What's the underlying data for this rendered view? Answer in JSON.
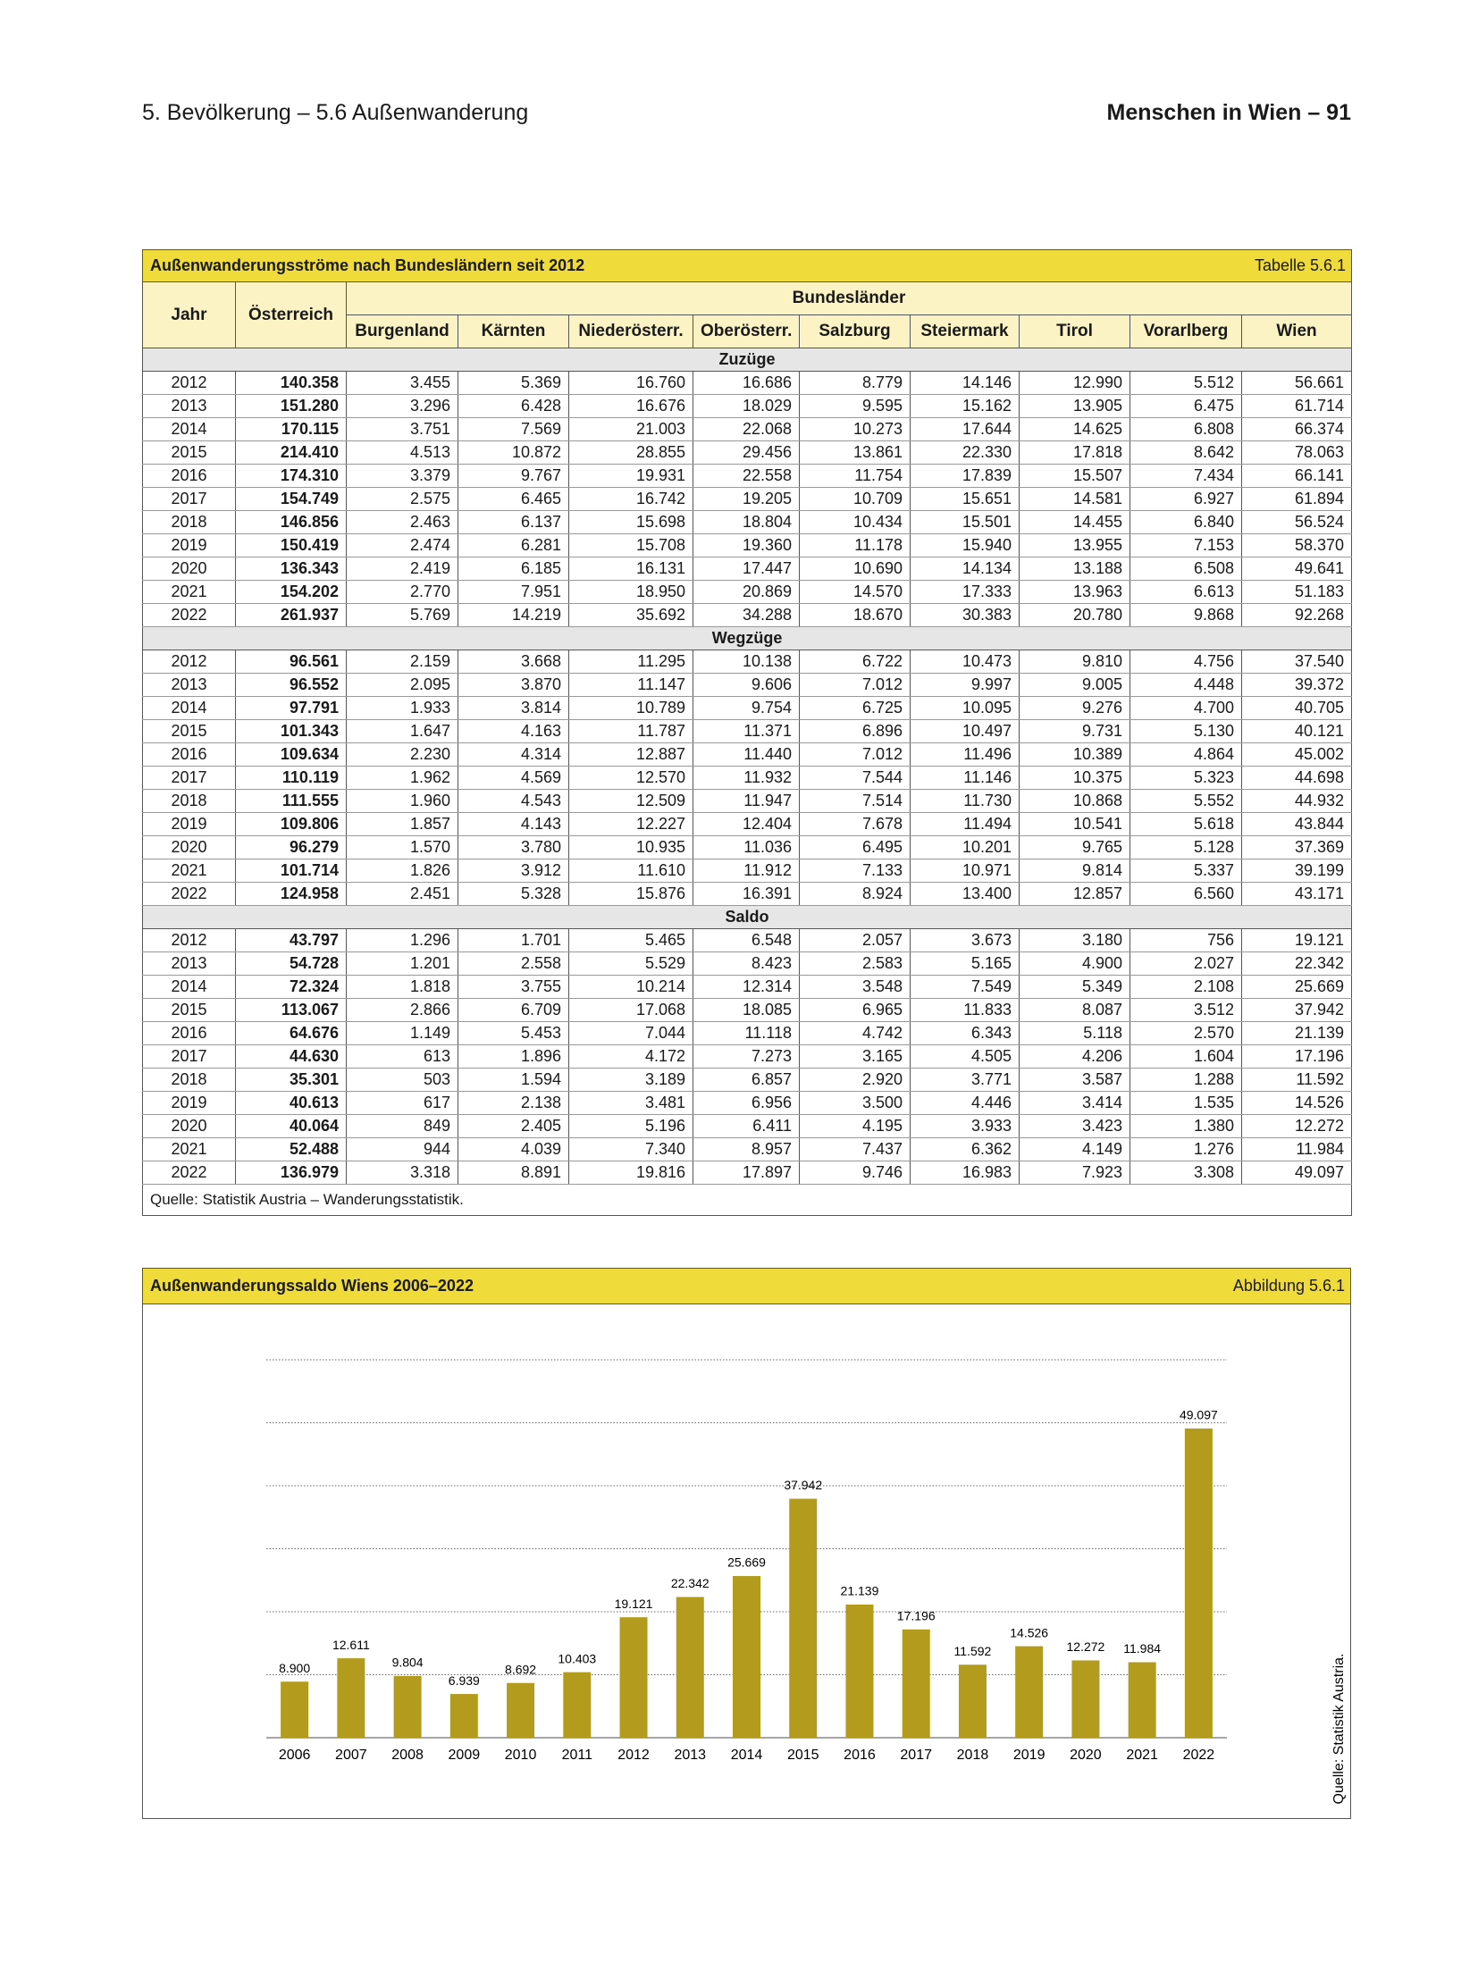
{
  "header": {
    "left": "5. Bevölkerung – 5.6 Außenwanderung",
    "right": "Menschen in Wien – 91"
  },
  "table": {
    "title": "Außenwanderungsströme nach Bundesländern seit 2012",
    "label": "Tabelle 5.6.1",
    "columns": {
      "year": "Jahr",
      "austria": "Österreich",
      "group": "Bundesländer",
      "states": [
        "Burgenland",
        "Kärnten",
        "Niederösterr.",
        "Oberösterr.",
        "Salzburg",
        "Steiermark",
        "Tirol",
        "Vorarlberg",
        "Wien"
      ]
    },
    "sections": [
      {
        "name": "Zuzüge",
        "rows": [
          [
            "2012",
            "140.358",
            "3.455",
            "5.369",
            "16.760",
            "16.686",
            "8.779",
            "14.146",
            "12.990",
            "5.512",
            "56.661"
          ],
          [
            "2013",
            "151.280",
            "3.296",
            "6.428",
            "16.676",
            "18.029",
            "9.595",
            "15.162",
            "13.905",
            "6.475",
            "61.714"
          ],
          [
            "2014",
            "170.115",
            "3.751",
            "7.569",
            "21.003",
            "22.068",
            "10.273",
            "17.644",
            "14.625",
            "6.808",
            "66.374"
          ],
          [
            "2015",
            "214.410",
            "4.513",
            "10.872",
            "28.855",
            "29.456",
            "13.861",
            "22.330",
            "17.818",
            "8.642",
            "78.063"
          ],
          [
            "2016",
            "174.310",
            "3.379",
            "9.767",
            "19.931",
            "22.558",
            "11.754",
            "17.839",
            "15.507",
            "7.434",
            "66.141"
          ],
          [
            "2017",
            "154.749",
            "2.575",
            "6.465",
            "16.742",
            "19.205",
            "10.709",
            "15.651",
            "14.581",
            "6.927",
            "61.894"
          ],
          [
            "2018",
            "146.856",
            "2.463",
            "6.137",
            "15.698",
            "18.804",
            "10.434",
            "15.501",
            "14.455",
            "6.840",
            "56.524"
          ],
          [
            "2019",
            "150.419",
            "2.474",
            "6.281",
            "15.708",
            "19.360",
            "11.178",
            "15.940",
            "13.955",
            "7.153",
            "58.370"
          ],
          [
            "2020",
            "136.343",
            "2.419",
            "6.185",
            "16.131",
            "17.447",
            "10.690",
            "14.134",
            "13.188",
            "6.508",
            "49.641"
          ],
          [
            "2021",
            "154.202",
            "2.770",
            "7.951",
            "18.950",
            "20.869",
            "14.570",
            "17.333",
            "13.963",
            "6.613",
            "51.183"
          ],
          [
            "2022",
            "261.937",
            "5.769",
            "14.219",
            "35.692",
            "34.288",
            "18.670",
            "30.383",
            "20.780",
            "9.868",
            "92.268"
          ]
        ]
      },
      {
        "name": "Wegzüge",
        "rows": [
          [
            "2012",
            "96.561",
            "2.159",
            "3.668",
            "11.295",
            "10.138",
            "6.722",
            "10.473",
            "9.810",
            "4.756",
            "37.540"
          ],
          [
            "2013",
            "96.552",
            "2.095",
            "3.870",
            "11.147",
            "9.606",
            "7.012",
            "9.997",
            "9.005",
            "4.448",
            "39.372"
          ],
          [
            "2014",
            "97.791",
            "1.933",
            "3.814",
            "10.789",
            "9.754",
            "6.725",
            "10.095",
            "9.276",
            "4.700",
            "40.705"
          ],
          [
            "2015",
            "101.343",
            "1.647",
            "4.163",
            "11.787",
            "11.371",
            "6.896",
            "10.497",
            "9.731",
            "5.130",
            "40.121"
          ],
          [
            "2016",
            "109.634",
            "2.230",
            "4.314",
            "12.887",
            "11.440",
            "7.012",
            "11.496",
            "10.389",
            "4.864",
            "45.002"
          ],
          [
            "2017",
            "110.119",
            "1.962",
            "4.569",
            "12.570",
            "11.932",
            "7.544",
            "11.146",
            "10.375",
            "5.323",
            "44.698"
          ],
          [
            "2018",
            "111.555",
            "1.960",
            "4.543",
            "12.509",
            "11.947",
            "7.514",
            "11.730",
            "10.868",
            "5.552",
            "44.932"
          ],
          [
            "2019",
            "109.806",
            "1.857",
            "4.143",
            "12.227",
            "12.404",
            "7.678",
            "11.494",
            "10.541",
            "5.618",
            "43.844"
          ],
          [
            "2020",
            "96.279",
            "1.570",
            "3.780",
            "10.935",
            "11.036",
            "6.495",
            "10.201",
            "9.765",
            "5.128",
            "37.369"
          ],
          [
            "2021",
            "101.714",
            "1.826",
            "3.912",
            "11.610",
            "11.912",
            "7.133",
            "10.971",
            "9.814",
            "5.337",
            "39.199"
          ],
          [
            "2022",
            "124.958",
            "2.451",
            "5.328",
            "15.876",
            "16.391",
            "8.924",
            "13.400",
            "12.857",
            "6.560",
            "43.171"
          ]
        ]
      },
      {
        "name": "Saldo",
        "rows": [
          [
            "2012",
            "43.797",
            "1.296",
            "1.701",
            "5.465",
            "6.548",
            "2.057",
            "3.673",
            "3.180",
            "756",
            "19.121"
          ],
          [
            "2013",
            "54.728",
            "1.201",
            "2.558",
            "5.529",
            "8.423",
            "2.583",
            "5.165",
            "4.900",
            "2.027",
            "22.342"
          ],
          [
            "2014",
            "72.324",
            "1.818",
            "3.755",
            "10.214",
            "12.314",
            "3.548",
            "7.549",
            "5.349",
            "2.108",
            "25.669"
          ],
          [
            "2015",
            "113.067",
            "2.866",
            "6.709",
            "17.068",
            "18.085",
            "6.965",
            "11.833",
            "8.087",
            "3.512",
            "37.942"
          ],
          [
            "2016",
            "64.676",
            "1.149",
            "5.453",
            "7.044",
            "11.118",
            "4.742",
            "6.343",
            "5.118",
            "2.570",
            "21.139"
          ],
          [
            "2017",
            "44.630",
            "613",
            "1.896",
            "4.172",
            "7.273",
            "3.165",
            "4.505",
            "4.206",
            "1.604",
            "17.196"
          ],
          [
            "2018",
            "35.301",
            "503",
            "1.594",
            "3.189",
            "6.857",
            "2.920",
            "3.771",
            "3.587",
            "1.288",
            "11.592"
          ],
          [
            "2019",
            "40.613",
            "617",
            "2.138",
            "3.481",
            "6.956",
            "3.500",
            "4.446",
            "3.414",
            "1.535",
            "14.526"
          ],
          [
            "2020",
            "40.064",
            "849",
            "2.405",
            "5.196",
            "6.411",
            "4.195",
            "3.933",
            "3.423",
            "1.380",
            "12.272"
          ],
          [
            "2021",
            "52.488",
            "944",
            "4.039",
            "7.340",
            "8.957",
            "7.437",
            "6.362",
            "4.149",
            "1.276",
            "11.984"
          ],
          [
            "2022",
            "136.979",
            "3.318",
            "8.891",
            "19.816",
            "17.897",
            "9.746",
            "16.983",
            "7.923",
            "3.308",
            "49.097"
          ]
        ]
      }
    ],
    "source": "Quelle: Statistik Austria – Wanderungsstatistik."
  },
  "chart_data": {
    "type": "bar",
    "title": "Außenwanderungssaldo Wiens 2006–2022",
    "label": "Abbildung 5.6.1",
    "categories": [
      "2006",
      "2007",
      "2008",
      "2009",
      "2010",
      "2011",
      "2012",
      "2013",
      "2014",
      "2015",
      "2016",
      "2017",
      "2018",
      "2019",
      "2020",
      "2021",
      "2022"
    ],
    "values": [
      8900,
      12611,
      9804,
      6939,
      8692,
      10403,
      19121,
      22342,
      25669,
      37942,
      21139,
      17196,
      11592,
      14526,
      12272,
      11984,
      49097
    ],
    "value_labels": [
      "8.900",
      "12.611",
      "9.804",
      "6.939",
      "8.692",
      "10.403",
      "19.121",
      "22.342",
      "25.669",
      "37.942",
      "21.139",
      "17.196",
      "11.592",
      "14.526",
      "12.272",
      "11.984",
      "49.097"
    ],
    "color": "#b39b1e",
    "ylim": [
      0,
      60000
    ],
    "yticks": [
      0,
      10000,
      20000,
      30000,
      40000,
      50000,
      60000
    ],
    "grid": true,
    "source": "Quelle: Statistik Austria."
  }
}
